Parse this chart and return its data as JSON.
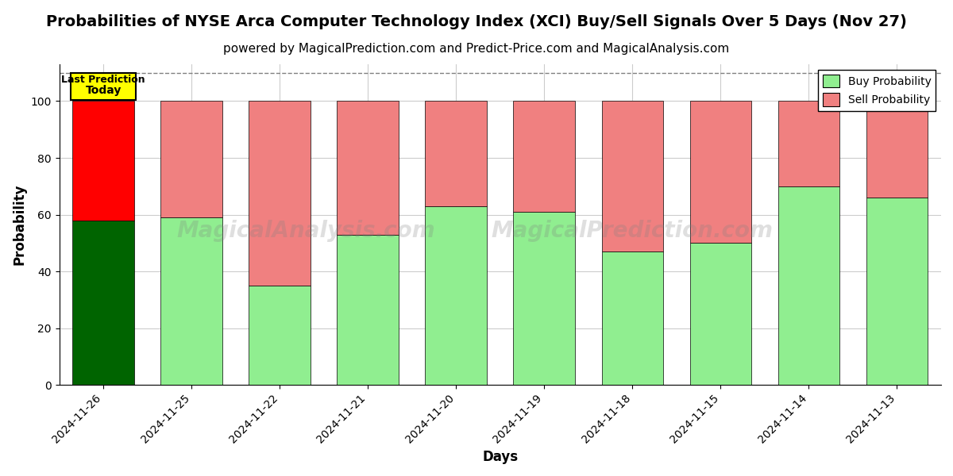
{
  "title": "Probabilities of NYSE Arca Computer Technology Index (XCI) Buy/Sell Signals Over 5 Days (Nov 27)",
  "subtitle": "powered by MagicalPrediction.com and Predict-Price.com and MagicalAnalysis.com",
  "xlabel": "Days",
  "ylabel": "Probability",
  "watermark1": "MagicalAnalysis.com",
  "watermark2": "MagicalPrediction.com",
  "categories": [
    "2024-11-26",
    "2024-11-25",
    "2024-11-22",
    "2024-11-21",
    "2024-11-20",
    "2024-11-19",
    "2024-11-18",
    "2024-11-15",
    "2024-11-14",
    "2024-11-13"
  ],
  "buy_values": [
    58,
    59,
    35,
    53,
    63,
    61,
    47,
    50,
    70,
    66
  ],
  "sell_values": [
    42,
    41,
    65,
    47,
    37,
    39,
    53,
    50,
    30,
    34
  ],
  "buy_colors": [
    "#006400",
    "#90EE90",
    "#90EE90",
    "#90EE90",
    "#90EE90",
    "#90EE90",
    "#90EE90",
    "#90EE90",
    "#90EE90",
    "#90EE90"
  ],
  "sell_colors": [
    "#FF0000",
    "#F08080",
    "#F08080",
    "#F08080",
    "#F08080",
    "#F08080",
    "#F08080",
    "#F08080",
    "#F08080",
    "#F08080"
  ],
  "today_label_line1": "Today",
  "today_label_line2": "Last Prediction",
  "legend_buy_label": "Buy Probability",
  "legend_sell_label": "Sell Probability",
  "legend_buy_color": "#90EE90",
  "legend_sell_color": "#F08080",
  "ylim_min": 0,
  "ylim_max": 113,
  "yticks": [
    0,
    20,
    40,
    60,
    80,
    100
  ],
  "dashed_line_y": 110,
  "background_color": "#ffffff",
  "grid_color": "#cccccc",
  "title_fontsize": 14,
  "subtitle_fontsize": 11,
  "axis_label_fontsize": 12,
  "tick_fontsize": 10,
  "bar_width": 0.7
}
